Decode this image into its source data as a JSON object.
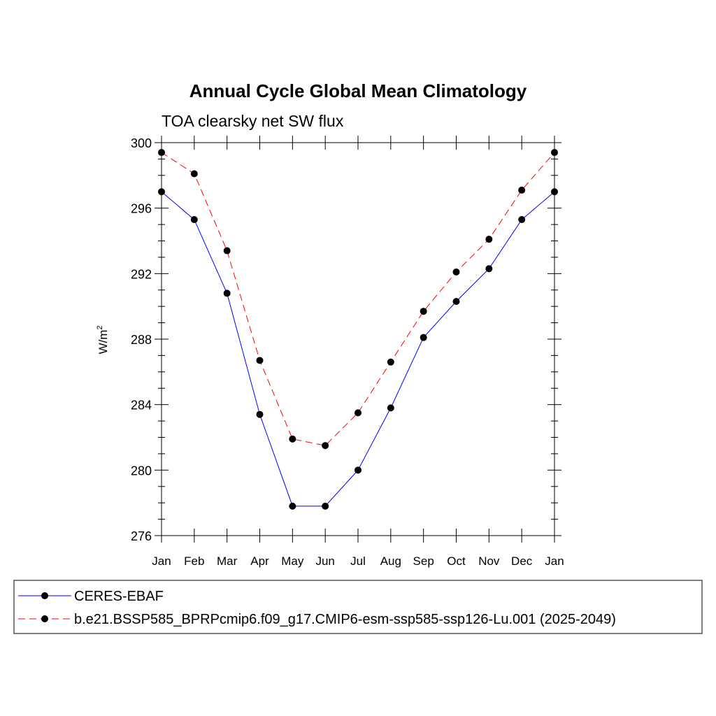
{
  "chart_data": {
    "type": "line",
    "title": "Annual Cycle Global Mean Climatology",
    "subtitle": "TOA clearsky net SW flux",
    "ylabel": "W/m",
    "ylabel_superscript": "2",
    "xlabel": "",
    "categories": [
      "Jan",
      "Feb",
      "Mar",
      "Apr",
      "May",
      "Jun",
      "Jul",
      "Aug",
      "Sep",
      "Oct",
      "Nov",
      "Dec",
      "Jan"
    ],
    "ylim": [
      276,
      300
    ],
    "yticks": [
      276,
      280,
      284,
      288,
      292,
      296,
      300
    ],
    "series": [
      {
        "name": "CERES-EBAF",
        "color": "#0000ff",
        "dash": "solid",
        "values": [
          297.0,
          295.3,
          290.8,
          283.4,
          277.8,
          277.8,
          280.0,
          283.8,
          288.1,
          290.3,
          292.3,
          295.3,
          297.0
        ]
      },
      {
        "name": "b.e21.BSSP585_BPRPcmip6.f09_g17.CMIP6-esm-ssp585-ssp126-Lu.001 (2025-2049)",
        "color": "#ff0000",
        "dash": "dashed",
        "values": [
          299.4,
          298.1,
          293.4,
          286.7,
          281.9,
          281.5,
          283.5,
          286.6,
          289.7,
          292.1,
          294.1,
          297.1,
          299.4
        ]
      }
    ],
    "grid": false,
    "legend_position": "bottom"
  }
}
